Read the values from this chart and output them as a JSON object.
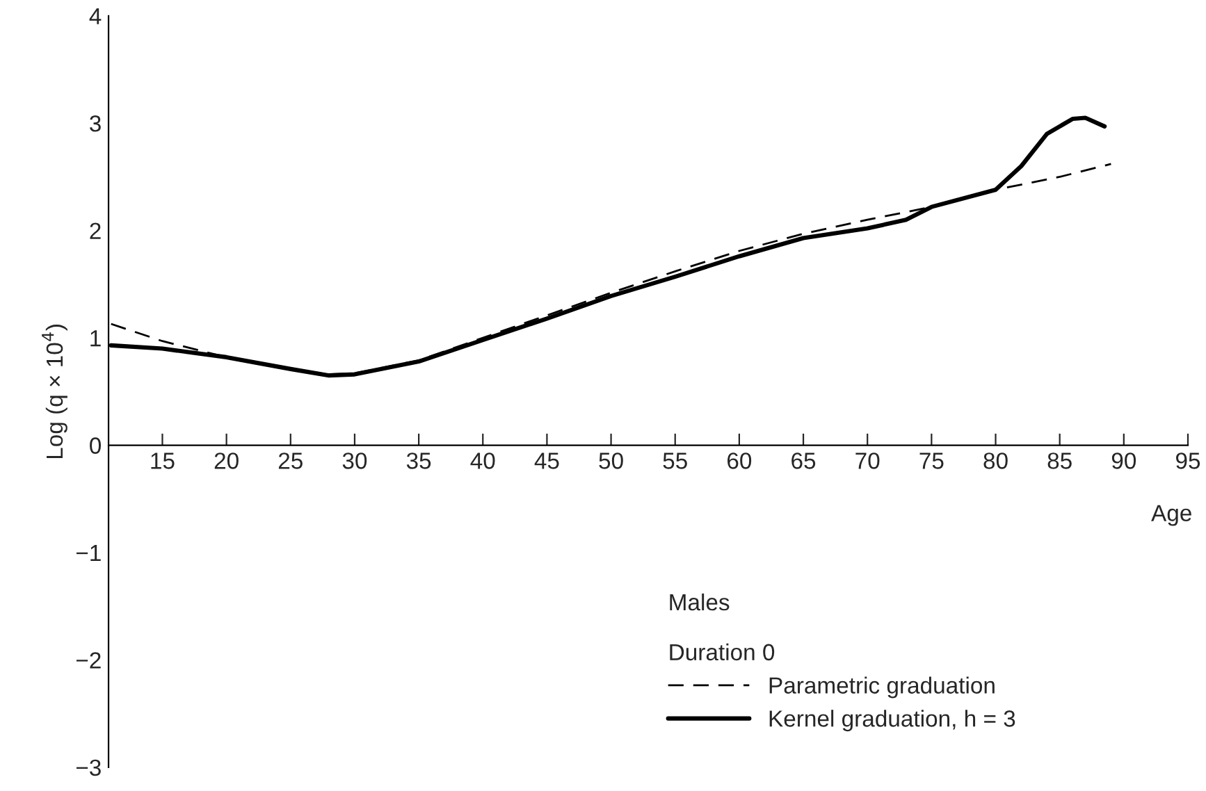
{
  "chart_data": {
    "type": "line",
    "xlabel": "Age",
    "ylabel": "Log (q × 10$^{4}$)",
    "legend_title": "Males\n\nDuration 0",
    "xlim": [
      10.8,
      95
    ],
    "xticks": [
      15,
      20,
      25,
      30,
      35,
      40,
      45,
      50,
      55,
      60,
      65,
      70,
      75,
      80,
      85,
      90,
      95
    ],
    "ylim": [
      -3,
      4
    ],
    "yticks": [
      -3,
      -2,
      -1,
      0,
      1,
      2,
      3,
      4
    ],
    "grid": false,
    "legend": "bottom right",
    "series": [
      {
        "name": "Parametric graduation",
        "color": "#000000",
        "line_style": "dashed",
        "x": [
          11,
          15,
          20,
          25,
          28,
          30,
          35,
          40,
          45,
          50,
          55,
          60,
          65,
          70,
          75,
          80,
          85,
          89
        ],
        "values": [
          1.13,
          0.97,
          0.82,
          0.71,
          0.66,
          0.67,
          0.79,
          1.0,
          1.21,
          1.42,
          1.62,
          1.81,
          1.97,
          2.1,
          2.22,
          2.38,
          2.5,
          2.62
        ]
      },
      {
        "name": "Kernel graduation, h = 3",
        "color": "#000000",
        "line_style": "solid",
        "x": [
          11,
          15,
          20,
          25,
          28,
          30,
          35,
          40,
          45,
          50,
          55,
          60,
          65,
          70,
          73,
          75,
          80,
          82,
          84,
          86,
          87,
          88.5
        ],
        "values": [
          0.93,
          0.9,
          0.82,
          0.71,
          0.65,
          0.66,
          0.78,
          0.98,
          1.18,
          1.39,
          1.57,
          1.76,
          1.93,
          2.02,
          2.1,
          2.22,
          2.38,
          2.6,
          2.9,
          3.04,
          3.05,
          2.97
        ]
      }
    ]
  }
}
